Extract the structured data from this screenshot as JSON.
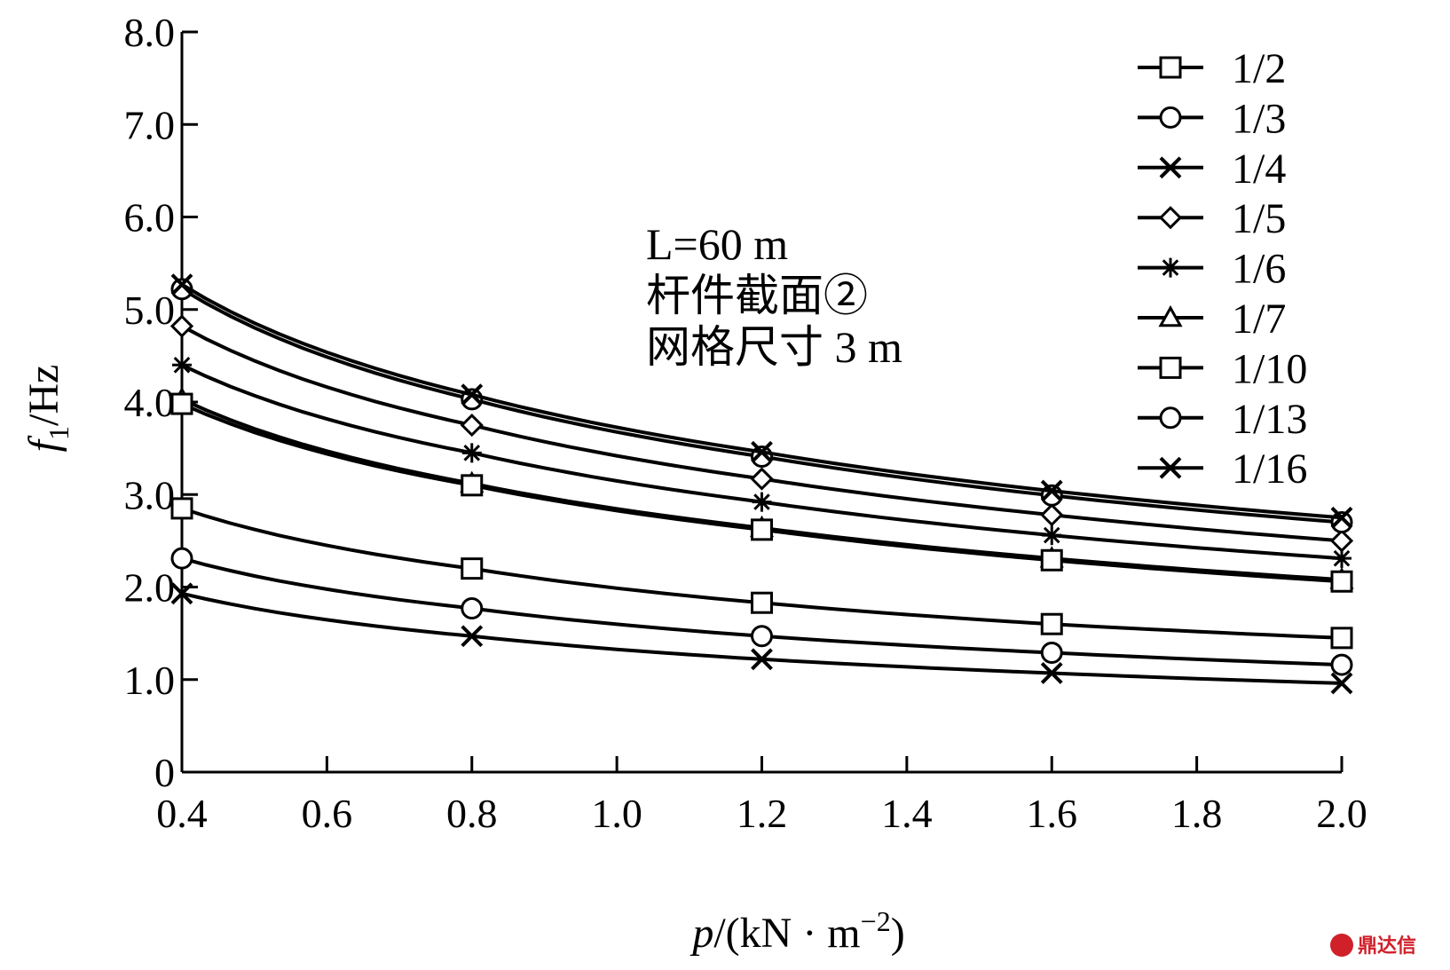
{
  "chart_data": {
    "type": "line",
    "x": [
      0.4,
      0.8,
      1.2,
      1.6,
      2.0
    ],
    "xlim": [
      0.4,
      2.0
    ],
    "ylim": [
      0,
      8.0
    ],
    "xticks": [
      "0.4",
      "0.6",
      "0.8",
      "1.0",
      "1.2",
      "1.4",
      "1.6",
      "1.8",
      "2.0"
    ],
    "yticks": [
      "0",
      "1.0",
      "2.0",
      "3.0",
      "4.0",
      "5.0",
      "6.0",
      "7.0",
      "8.0"
    ],
    "xlabel": {
      "italic": "p",
      "rest": "/(kN · m",
      "sup": "−2",
      "close": ")"
    },
    "ylabel": {
      "italic": "f",
      "sub": "1",
      "rest": "/Hz"
    },
    "annotations": [
      "L=60 m",
      "杆件截面②",
      "网格尺寸 3 m"
    ],
    "legend_position": "top-right",
    "grid": false,
    "series": [
      {
        "name": "1/2",
        "marker": "square",
        "values": [
          2.85,
          2.2,
          1.83,
          1.6,
          1.45
        ]
      },
      {
        "name": "1/3",
        "marker": "circle",
        "values": [
          2.31,
          1.77,
          1.47,
          1.29,
          1.16
        ]
      },
      {
        "name": "1/4",
        "marker": "x",
        "values": [
          1.93,
          1.47,
          1.22,
          1.07,
          0.96
        ]
      },
      {
        "name": "1/5",
        "marker": "diamond",
        "values": [
          4.82,
          3.75,
          3.17,
          2.78,
          2.5
        ]
      },
      {
        "name": "1/6",
        "marker": "asterisk",
        "values": [
          4.4,
          3.45,
          2.92,
          2.56,
          2.31
        ]
      },
      {
        "name": "1/7",
        "marker": "triangle",
        "values": [
          4.03,
          3.12,
          2.64,
          2.31,
          2.08
        ]
      },
      {
        "name": "1/10",
        "marker": "square",
        "values": [
          3.98,
          3.1,
          2.62,
          2.29,
          2.06
        ]
      },
      {
        "name": "1/13",
        "marker": "circle",
        "values": [
          5.22,
          4.03,
          3.41,
          2.99,
          2.7
        ]
      },
      {
        "name": "1/16",
        "marker": "x",
        "values": [
          5.27,
          4.08,
          3.46,
          3.04,
          2.75
        ]
      }
    ]
  },
  "watermark": "鼎达信"
}
